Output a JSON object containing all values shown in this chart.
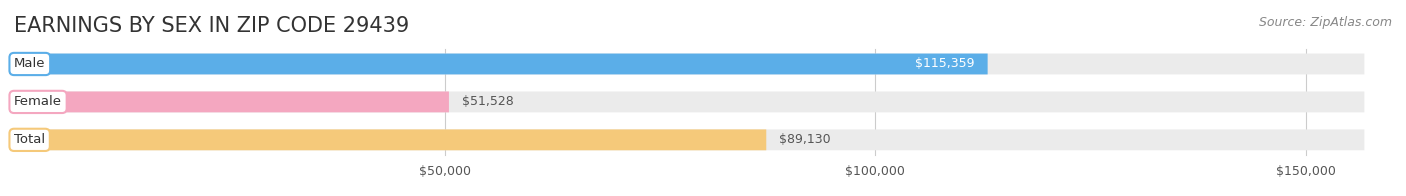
{
  "title": "EARNINGS BY SEX IN ZIP CODE 29439",
  "source": "Source: ZipAtlas.com",
  "categories": [
    "Male",
    "Female",
    "Total"
  ],
  "values": [
    115359,
    51528,
    89130
  ],
  "bar_colors": [
    "#5BAEE8",
    "#F4A7C0",
    "#F5C97A"
  ],
  "bar_bg_color": "#EBEBEB",
  "label_bg_color": "#FFFFFF",
  "value_labels": [
    "$115,359",
    "$51,528",
    "$89,130"
  ],
  "value_label_colors": [
    "#FFFFFF",
    "#555555",
    "#555555"
  ],
  "x_ticks": [
    50000,
    100000,
    150000
  ],
  "x_tick_labels": [
    "$50,000",
    "$100,000",
    "$150,000"
  ],
  "xlim": [
    0,
    160000
  ],
  "title_fontsize": 15,
  "source_fontsize": 9,
  "background_color": "#FFFFFF"
}
